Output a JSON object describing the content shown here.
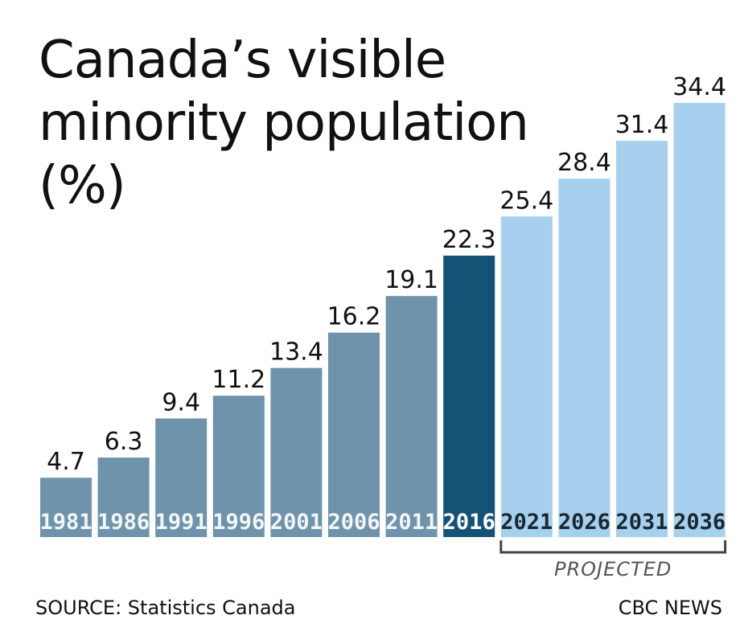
{
  "chart_data": {
    "type": "bar",
    "title": "Canada’s visible minority population (%)",
    "categories": [
      "1981",
      "1986",
      "1991",
      "1996",
      "2001",
      "2006",
      "2011",
      "2016",
      "2021",
      "2026",
      "2031",
      "2036"
    ],
    "values": [
      4.7,
      6.3,
      9.4,
      11.2,
      13.4,
      16.2,
      19.1,
      22.3,
      25.4,
      28.4,
      31.4,
      34.4
    ],
    "value_labels": [
      "4.7",
      "6.3",
      "9.4",
      "11.2",
      "13.4",
      "16.2",
      "19.1",
      "22.3",
      "25.4",
      "28.4",
      "31.4",
      "34.4"
    ],
    "xlabel": "",
    "ylabel": "",
    "ylim": [
      0,
      34.4
    ],
    "grid": false,
    "legend": "none",
    "projected_from_index": 8,
    "projected_label": "PROJECTED",
    "colors": {
      "historical": "#6f93ab",
      "current": "#145376",
      "projected": "#a6d0ee",
      "historical_text": "#f2f6f9",
      "current_text": "#ffffff",
      "projected_text": "#1a2730",
      "bracket": "#444444"
    }
  },
  "footer": {
    "source": "SOURCE: Statistics Canada",
    "credit": "CBC NEWS"
  }
}
